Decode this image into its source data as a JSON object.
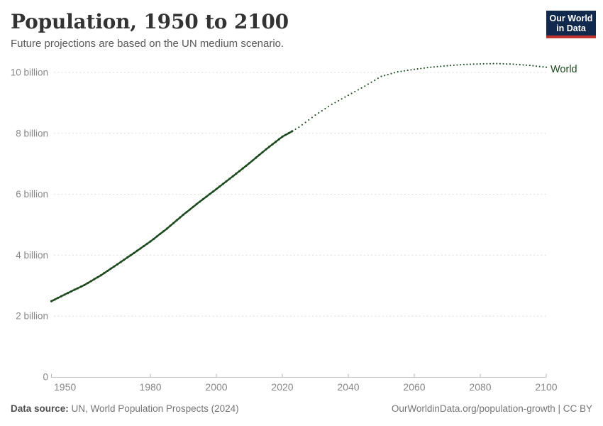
{
  "header": {
    "title": "Population, 1950 to 2100",
    "subtitle": "Future projections are based on the UN medium scenario."
  },
  "logo": {
    "line1": "Our World",
    "line2": "in Data",
    "bg_color": "#12294e",
    "accent_color": "#c0342f"
  },
  "footer": {
    "source_label": "Data source:",
    "source_text": "UN, World Population Prospects (2024)",
    "link_text": "OurWorldinData.org/population-growth | CC BY"
  },
  "chart_data": {
    "type": "line",
    "title": "Population, 1950 to 2100",
    "subtitle": "Future projections are based on the UN medium scenario.",
    "xlabel": "",
    "ylabel": "",
    "unit": "billion people",
    "xlim": [
      1950,
      2100
    ],
    "ylim": [
      0,
      10.7
    ],
    "grid": "dashed-horizontal",
    "legend_position": "end-of-line-label",
    "x_ticks": [
      1950,
      1980,
      2000,
      2020,
      2040,
      2060,
      2080,
      2100
    ],
    "y_ticks": [
      {
        "value": 0,
        "label": "0"
      },
      {
        "value": 2,
        "label": "2 billion"
      },
      {
        "value": 4,
        "label": "4 billion"
      },
      {
        "value": 6,
        "label": "6 billion"
      },
      {
        "value": 8,
        "label": "8 billion"
      },
      {
        "value": 10,
        "label": "10 billion"
      }
    ],
    "colors": {
      "series_green": "#1c4a1e",
      "gridline": "#dadada",
      "axis": "#c6c6c6",
      "tick": "#b5b5b5",
      "tick_label": "#878787"
    },
    "series": [
      {
        "name": "World",
        "color": "#1c4a1e",
        "historical": {
          "style": "solid-with-markers",
          "years": [
            1950,
            1955,
            1960,
            1965,
            1970,
            1975,
            1980,
            1985,
            1990,
            1995,
            2000,
            2005,
            2010,
            2015,
            2020,
            2023
          ],
          "values_billions": [
            2.49,
            2.76,
            3.02,
            3.34,
            3.7,
            4.07,
            4.45,
            4.87,
            5.33,
            5.76,
            6.17,
            6.59,
            7.02,
            7.47,
            7.89,
            8.07
          ]
        },
        "projection": {
          "style": "dotted",
          "years": [
            2023,
            2025,
            2030,
            2035,
            2040,
            2045,
            2050,
            2055,
            2060,
            2065,
            2070,
            2075,
            2080,
            2085,
            2090,
            2095,
            2100
          ],
          "values_billions": [
            8.07,
            8.2,
            8.6,
            8.95,
            9.25,
            9.55,
            9.87,
            10.02,
            10.1,
            10.17,
            10.22,
            10.26,
            10.28,
            10.29,
            10.27,
            10.23,
            10.17
          ]
        }
      }
    ]
  }
}
